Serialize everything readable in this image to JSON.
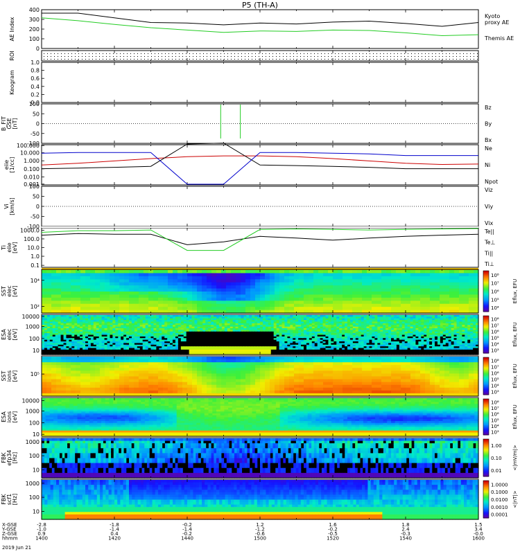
{
  "title": "P5 (TH-A)",
  "panels": [
    {
      "id": "ae",
      "ylabel": [
        "AE Index"
      ],
      "ticks": [
        "0",
        "100",
        "200",
        "300",
        "400"
      ],
      "legend": [
        {
          "text": "Kyoto",
          "color": "#22cc22"
        },
        {
          "text": "proxy AE",
          "color": "#22cc22"
        },
        {
          "text": "Themis AE",
          "color": "#000000"
        }
      ]
    },
    {
      "id": "roi",
      "ylabel": [
        "ROI"
      ],
      "ticks": [],
      "legend": []
    },
    {
      "id": "keogram",
      "ylabel": [
        "Keogram"
      ],
      "ticks": [
        "0.0",
        "0.2",
        "0.4",
        "0.6",
        "0.8",
        "1.0"
      ],
      "legend": []
    },
    {
      "id": "bfit",
      "ylabel": [
        "B_FIT",
        "GSE",
        "[nT]"
      ],
      "ticks": [
        "-100",
        "-50",
        "0",
        "50",
        "100"
      ],
      "legend": [
        {
          "text": "Bz",
          "color": "#cc0000"
        },
        {
          "text": "By",
          "color": "#22cc22"
        },
        {
          "text": "Bx",
          "color": "#0000cc"
        }
      ]
    },
    {
      "id": "dens",
      "ylabel": [
        "eiie",
        "[1/cc]"
      ],
      "ticks": [
        "0.001",
        "0.010",
        "0.100",
        "1.000",
        "10.000",
        "100.000"
      ],
      "legend": [
        {
          "text": "Ne",
          "color": "#cc0000"
        },
        {
          "text": "Ni",
          "color": "#000000"
        },
        {
          "text": "Npot",
          "color": "#0000cc"
        }
      ]
    },
    {
      "id": "vel",
      "ylabel": [
        "Vi",
        "[km/s]"
      ],
      "ticks": [
        "-100",
        "-50",
        "0",
        "50",
        "100"
      ],
      "legend": [
        {
          "text": "Viz",
          "color": "#cc0000"
        },
        {
          "text": "Viy",
          "color": "#22cc22"
        },
        {
          "text": "Vix",
          "color": "#0000cc"
        }
      ]
    },
    {
      "id": "temp",
      "ylabel": [
        "Ti",
        "eiie",
        "[eV]"
      ],
      "ticks": [
        "0.1",
        "1.0",
        "10.0",
        "100.0",
        "1000.0"
      ],
      "legend": [
        {
          "text": "Te||",
          "color": "#000000"
        },
        {
          "text": "Te⊥",
          "color": "#cc0000"
        },
        {
          "text": "Ti||",
          "color": "#22cc22"
        },
        {
          "text": "Ti⊥",
          "color": "#0000cc"
        }
      ]
    },
    {
      "id": "sst_e",
      "ylabel": [
        "SST",
        "elec",
        "[eV]"
      ],
      "ticks": [
        "10²",
        "10⁴"
      ],
      "legend": []
    },
    {
      "id": "esa_e",
      "ylabel": [
        "ESA",
        "elec",
        "[eV]"
      ],
      "ticks": [
        "10",
        "100",
        "1000",
        "10000"
      ],
      "legend": []
    },
    {
      "id": "sst_i",
      "ylabel": [
        "SST",
        "ions",
        "[eV]"
      ],
      "ticks": [
        "10⁵"
      ],
      "legend": []
    },
    {
      "id": "esa_i",
      "ylabel": [
        "ESA",
        "ions",
        "[eV]"
      ],
      "ticks": [
        "10",
        "100",
        "1000",
        "10000"
      ],
      "legend": []
    },
    {
      "id": "fbk_e",
      "ylabel": [
        "FBK",
        "efp34",
        "[Hz]"
      ],
      "ticks": [
        "10",
        "100",
        "1000"
      ],
      "legend": []
    },
    {
      "id": "fbk_b",
      "ylabel": [
        "FBK",
        "scf1",
        "[Hz]"
      ],
      "ticks": [
        "10",
        "100",
        "1000"
      ],
      "legend": []
    }
  ],
  "colorbars": [
    {
      "panel": "sst_e",
      "label": "Eflux, EFU",
      "ticks": [
        "10⁴",
        "10⁵",
        "10⁶",
        "10⁷",
        "10⁸"
      ]
    },
    {
      "panel": "esa_e",
      "label": "Eflux, EFU",
      "ticks": [
        "10³",
        "10⁴",
        "10⁵",
        "10⁶",
        "10⁷",
        "10⁸"
      ]
    },
    {
      "panel": "sst_i",
      "label": "Eflux, EFU",
      "ticks": [
        "10³",
        "10⁴",
        "10⁵",
        "10⁶",
        "10⁷",
        "10⁸"
      ]
    },
    {
      "panel": "esa_i",
      "label": "Eflux, EFU",
      "ticks": [
        "10³",
        "10⁴",
        "10⁵",
        "10⁶",
        "10⁷",
        "10⁸"
      ]
    },
    {
      "panel": "fbk_e",
      "label": "<|mV/m|>",
      "ticks": [
        "0.01",
        "0.10",
        "1.00"
      ]
    },
    {
      "panel": "fbk_b",
      "label": "<|nT|>",
      "ticks": [
        "0.0001",
        "0.0010",
        "0.0100",
        "0.1000",
        "1.0000"
      ]
    }
  ],
  "footer": {
    "rows": [
      {
        "label": "X-GSE",
        "values": [
          "-2.8",
          "-1.8",
          "-0.2",
          "1.2",
          "1.6",
          "1.8",
          "1.5"
        ]
      },
      {
        "label": "Y-GSE",
        "values": [
          "-1.0",
          "-1.4",
          "-1.4",
          "-1.2",
          "-0.2",
          "2.4",
          "3.4"
        ]
      },
      {
        "label": "Z-GSE",
        "values": [
          "0.9",
          "0.4",
          "-0.2",
          "-0.6",
          "-0.5",
          "-0.3",
          "-0.0"
        ]
      },
      {
        "label": "hhmm",
        "values": [
          "1400",
          "1420",
          "1440",
          "1500",
          "1520",
          "1540",
          "1600"
        ]
      }
    ],
    "date": "2019 Jun 21"
  },
  "chart_data": {
    "type": "line",
    "title": "P5 (TH-A)",
    "x": [
      1400,
      1410,
      1420,
      1430,
      1440,
      1450,
      1500,
      1510,
      1520,
      1530,
      1540,
      1550,
      1600
    ],
    "x_ticks": [
      "1400",
      "1420",
      "1440",
      "1500",
      "1520",
      "1540",
      "1600"
    ],
    "series": [
      {
        "panel": "ae",
        "name": "Themis AE",
        "values": [
          370,
          370,
          320,
          270,
          265,
          245,
          265,
          255,
          275,
          285,
          260,
          230,
          270
        ]
      },
      {
        "panel": "ae",
        "name": "Kyoto proxy AE",
        "values": [
          320,
          290,
          250,
          215,
          190,
          165,
          180,
          175,
          190,
          185,
          160,
          130,
          140
        ]
      },
      {
        "panel": "dens",
        "name": "Ne",
        "values": [
          0.3,
          0.5,
          1.0,
          2.0,
          3.5,
          4.5,
          4.5,
          3.5,
          2.0,
          1.0,
          0.5,
          0.35,
          0.4
        ]
      },
      {
        "panel": "dens",
        "name": "Ni",
        "values": [
          0.1,
          0.12,
          0.15,
          0.2,
          150,
          200,
          0.3,
          0.25,
          0.2,
          0.15,
          0.1,
          0.1,
          0.1
        ]
      },
      {
        "panel": "dens",
        "name": "Npot",
        "values": [
          10,
          12,
          12,
          12,
          0.001,
          0.001,
          12,
          12,
          10,
          8,
          5,
          5,
          5
        ]
      },
      {
        "panel": "temp",
        "name": "Te||",
        "values": [
          200,
          300,
          250,
          250,
          20,
          40,
          150,
          100,
          60,
          100,
          150,
          200,
          250
        ]
      },
      {
        "panel": "temp",
        "name": "Ti||",
        "values": [
          400,
          600,
          600,
          700,
          5,
          5,
          800,
          900,
          800,
          700,
          800,
          900,
          1000
        ]
      }
    ],
    "ylim": {
      "ae": [
        0,
        400
      ],
      "keogram": [
        0,
        1
      ],
      "bfit": [
        -100,
        100
      ],
      "dens": [
        0.001,
        100
      ],
      "vel": [
        -100,
        100
      ],
      "temp": [
        0.1,
        1000
      ]
    }
  }
}
